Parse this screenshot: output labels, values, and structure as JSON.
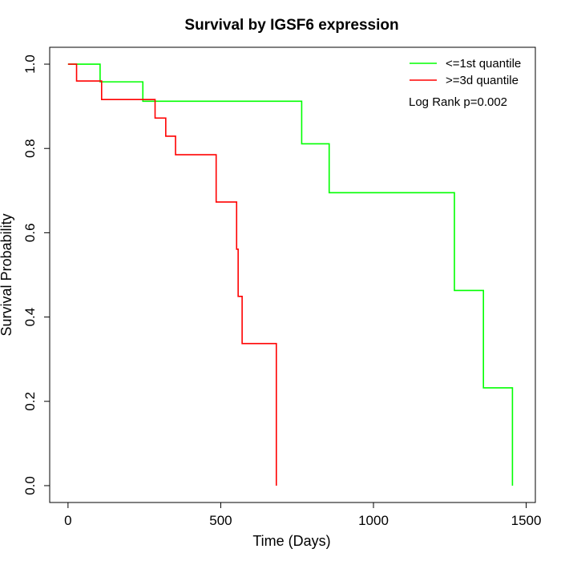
{
  "chart_data": {
    "type": "line",
    "title": "Survival by IGSF6 expression",
    "xlabel": "Time (Days)",
    "ylabel": "Survival Probability",
    "xlim": [
      -60,
      1530
    ],
    "ylim": [
      -0.04,
      1.04
    ],
    "xticks": [
      0,
      500,
      1000,
      1500
    ],
    "yticks": [
      0.0,
      0.2,
      0.4,
      0.6,
      0.8,
      1.0
    ],
    "xtick_labels": [
      "0",
      "500",
      "1000",
      "1500"
    ],
    "ytick_labels": [
      "0.0",
      "0.2",
      "0.4",
      "0.6",
      "0.8",
      "1.0"
    ],
    "grid": false,
    "legend_position": "top-right",
    "annotation": "Log Rank p=0.002",
    "series": [
      {
        "name": "<=1st quantile",
        "color": "#00ff00",
        "step": true,
        "x": [
          0,
          105,
          245,
          765,
          855,
          1265,
          1360,
          1455
        ],
        "y": [
          1.0,
          0.958,
          0.912,
          0.811,
          0.695,
          0.463,
          0.232,
          0.0
        ]
      },
      {
        "name": ">=3d quantile",
        "color": "#ff0000",
        "step": true,
        "x": [
          0,
          28,
          110,
          285,
          320,
          352,
          485,
          552,
          557,
          570,
          682
        ],
        "y": [
          1.0,
          0.96,
          0.916,
          0.872,
          0.829,
          0.785,
          0.673,
          0.561,
          0.449,
          0.337,
          0.0
        ]
      }
    ]
  }
}
